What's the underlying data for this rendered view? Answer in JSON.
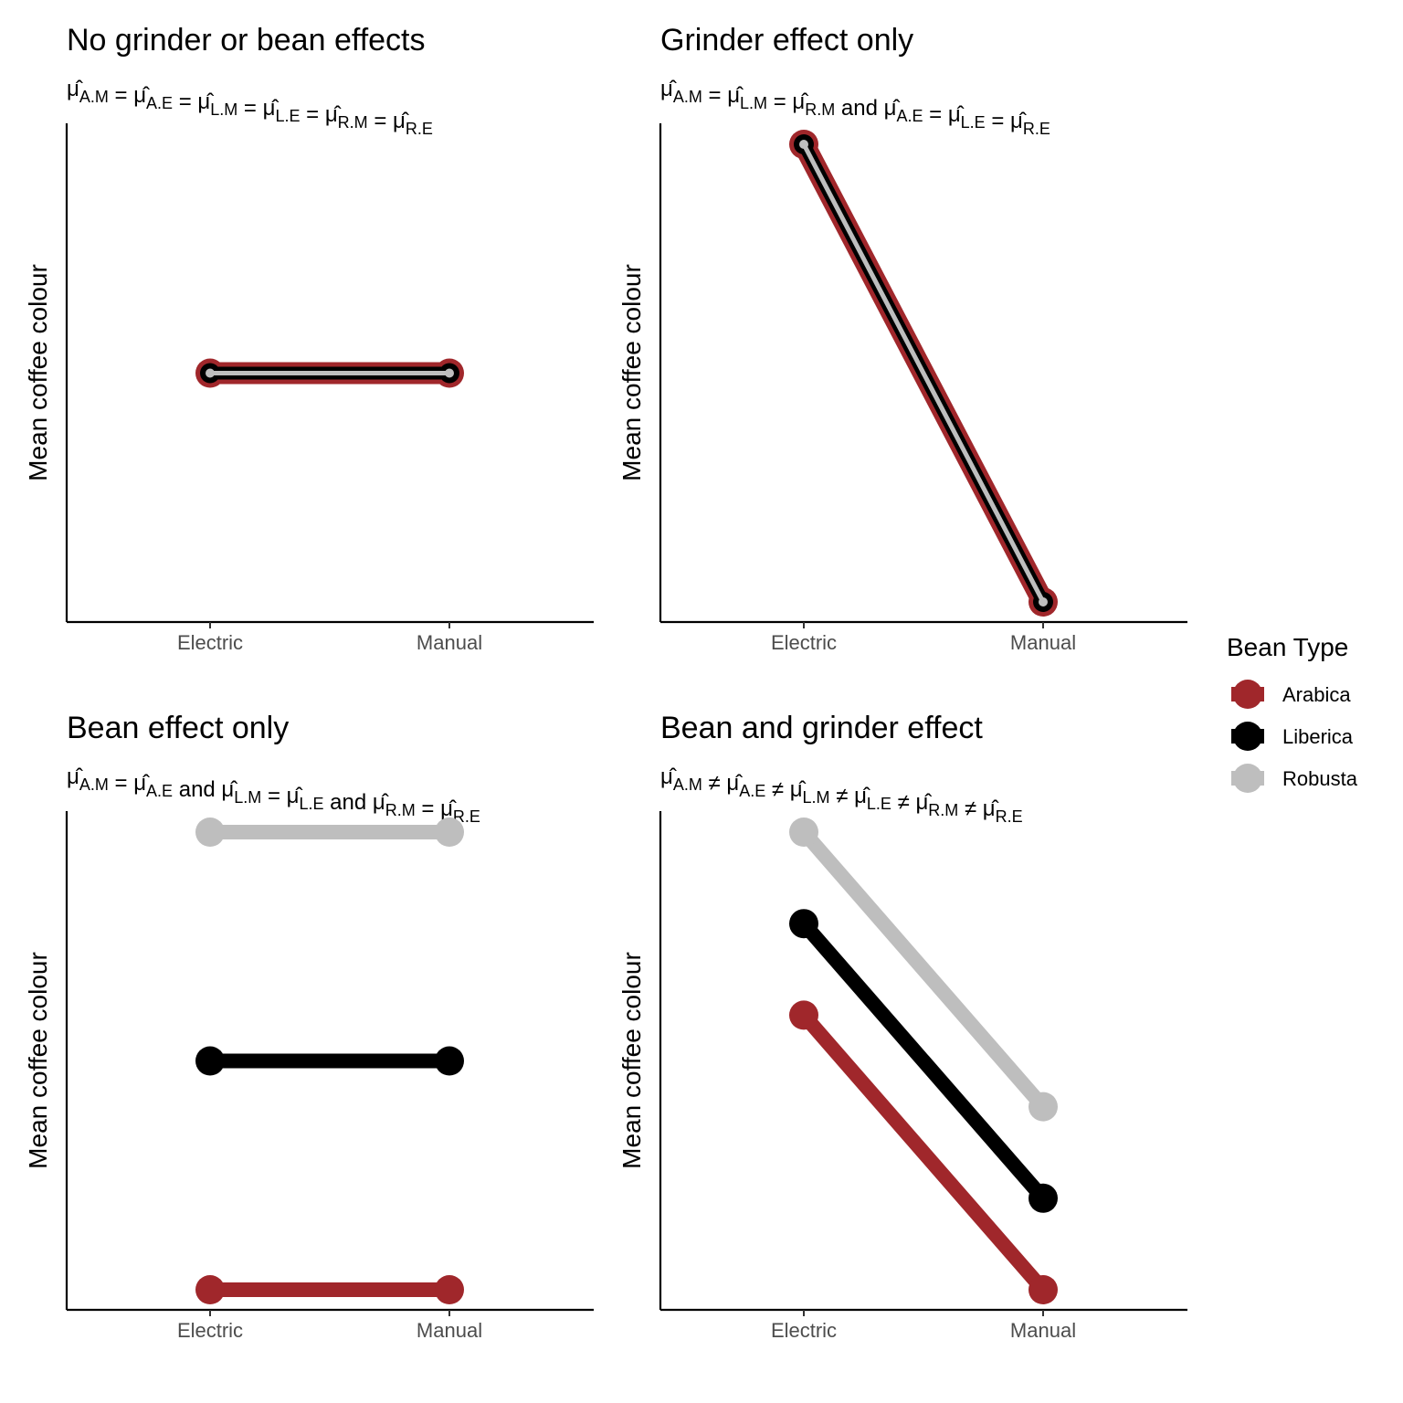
{
  "colors": {
    "Arabica": "#a0272b",
    "Liberica": "#000000",
    "Robusta": "#bebebe"
  },
  "legend": {
    "title": "Bean Type",
    "entries": [
      "Arabica",
      "Liberica",
      "Robusta"
    ],
    "placement": "right"
  },
  "chart_data": [
    {
      "type": "line",
      "title": "No grinder or bean effects",
      "subtitle": [
        {
          "t": "μ̂",
          "s": "A.M"
        },
        {
          "t": " = μ̂",
          "s": "A.E"
        },
        {
          "t": " = μ̂",
          "s": "L.M"
        },
        {
          "t": " = μ̂",
          "s": "L.E"
        },
        {
          "t": " = μ̂",
          "s": "R.M"
        },
        {
          "t": " = μ̂",
          "s": "R.E"
        }
      ],
      "xlabel": "",
      "ylabel": "Mean coffee colour",
      "categories": [
        "Electric",
        "Manual"
      ],
      "ylim": [
        0,
        10
      ],
      "grid": false,
      "series": [
        {
          "name": "Arabica",
          "values": [
            5,
            5
          ]
        },
        {
          "name": "Liberica",
          "values": [
            5,
            5
          ]
        },
        {
          "name": "Robusta",
          "values": [
            5,
            5
          ]
        }
      ]
    },
    {
      "type": "line",
      "title": "Grinder effect only",
      "subtitle": [
        {
          "t": "μ̂",
          "s": "A.M"
        },
        {
          "t": " = μ̂",
          "s": "L.M"
        },
        {
          "t": " = μ̂",
          "s": "R.M"
        },
        {
          "t": " and μ̂",
          "s": "A.E"
        },
        {
          "t": " = μ̂",
          "s": "L.E"
        },
        {
          "t": " = μ̂",
          "s": "R.E"
        }
      ],
      "xlabel": "",
      "ylabel": "Mean coffee colour",
      "categories": [
        "Electric",
        "Manual"
      ],
      "ylim": [
        0,
        10
      ],
      "grid": false,
      "series": [
        {
          "name": "Arabica",
          "values": [
            10,
            0
          ]
        },
        {
          "name": "Liberica",
          "values": [
            10,
            0
          ]
        },
        {
          "name": "Robusta",
          "values": [
            10,
            0
          ]
        }
      ]
    },
    {
      "type": "line",
      "title": "Bean effect only",
      "subtitle": [
        {
          "t": "μ̂",
          "s": "A.M"
        },
        {
          "t": " = μ̂",
          "s": "A.E"
        },
        {
          "t": " and μ̂",
          "s": "L.M"
        },
        {
          "t": " = μ̂",
          "s": "L.E"
        },
        {
          "t": " and μ̂",
          "s": "R.M"
        },
        {
          "t": " = μ̂",
          "s": "R.E"
        }
      ],
      "xlabel": "",
      "ylabel": "Mean coffee colour",
      "categories": [
        "Electric",
        "Manual"
      ],
      "ylim": [
        0,
        10
      ],
      "grid": false,
      "series": [
        {
          "name": "Arabica",
          "values": [
            0,
            0
          ]
        },
        {
          "name": "Liberica",
          "values": [
            5,
            5
          ]
        },
        {
          "name": "Robusta",
          "values": [
            10,
            10
          ]
        }
      ]
    },
    {
      "type": "line",
      "title": "Bean and grinder effect",
      "subtitle": [
        {
          "t": "μ̂",
          "s": "A.M"
        },
        {
          "t": " ≠ μ̂",
          "s": "A.E"
        },
        {
          "t": " ≠ μ̂",
          "s": "L.M"
        },
        {
          "t": " ≠ μ̂",
          "s": "L.E"
        },
        {
          "t": " ≠ μ̂",
          "s": "R.M"
        },
        {
          "t": " ≠ μ̂",
          "s": "R.E"
        }
      ],
      "xlabel": "",
      "ylabel": "Mean coffee colour",
      "categories": [
        "Electric",
        "Manual"
      ],
      "ylim": [
        0,
        10
      ],
      "grid": false,
      "series": [
        {
          "name": "Arabica",
          "values": [
            6,
            0
          ]
        },
        {
          "name": "Liberica",
          "values": [
            8,
            2
          ]
        },
        {
          "name": "Robusta",
          "values": [
            10,
            4
          ]
        }
      ]
    }
  ]
}
